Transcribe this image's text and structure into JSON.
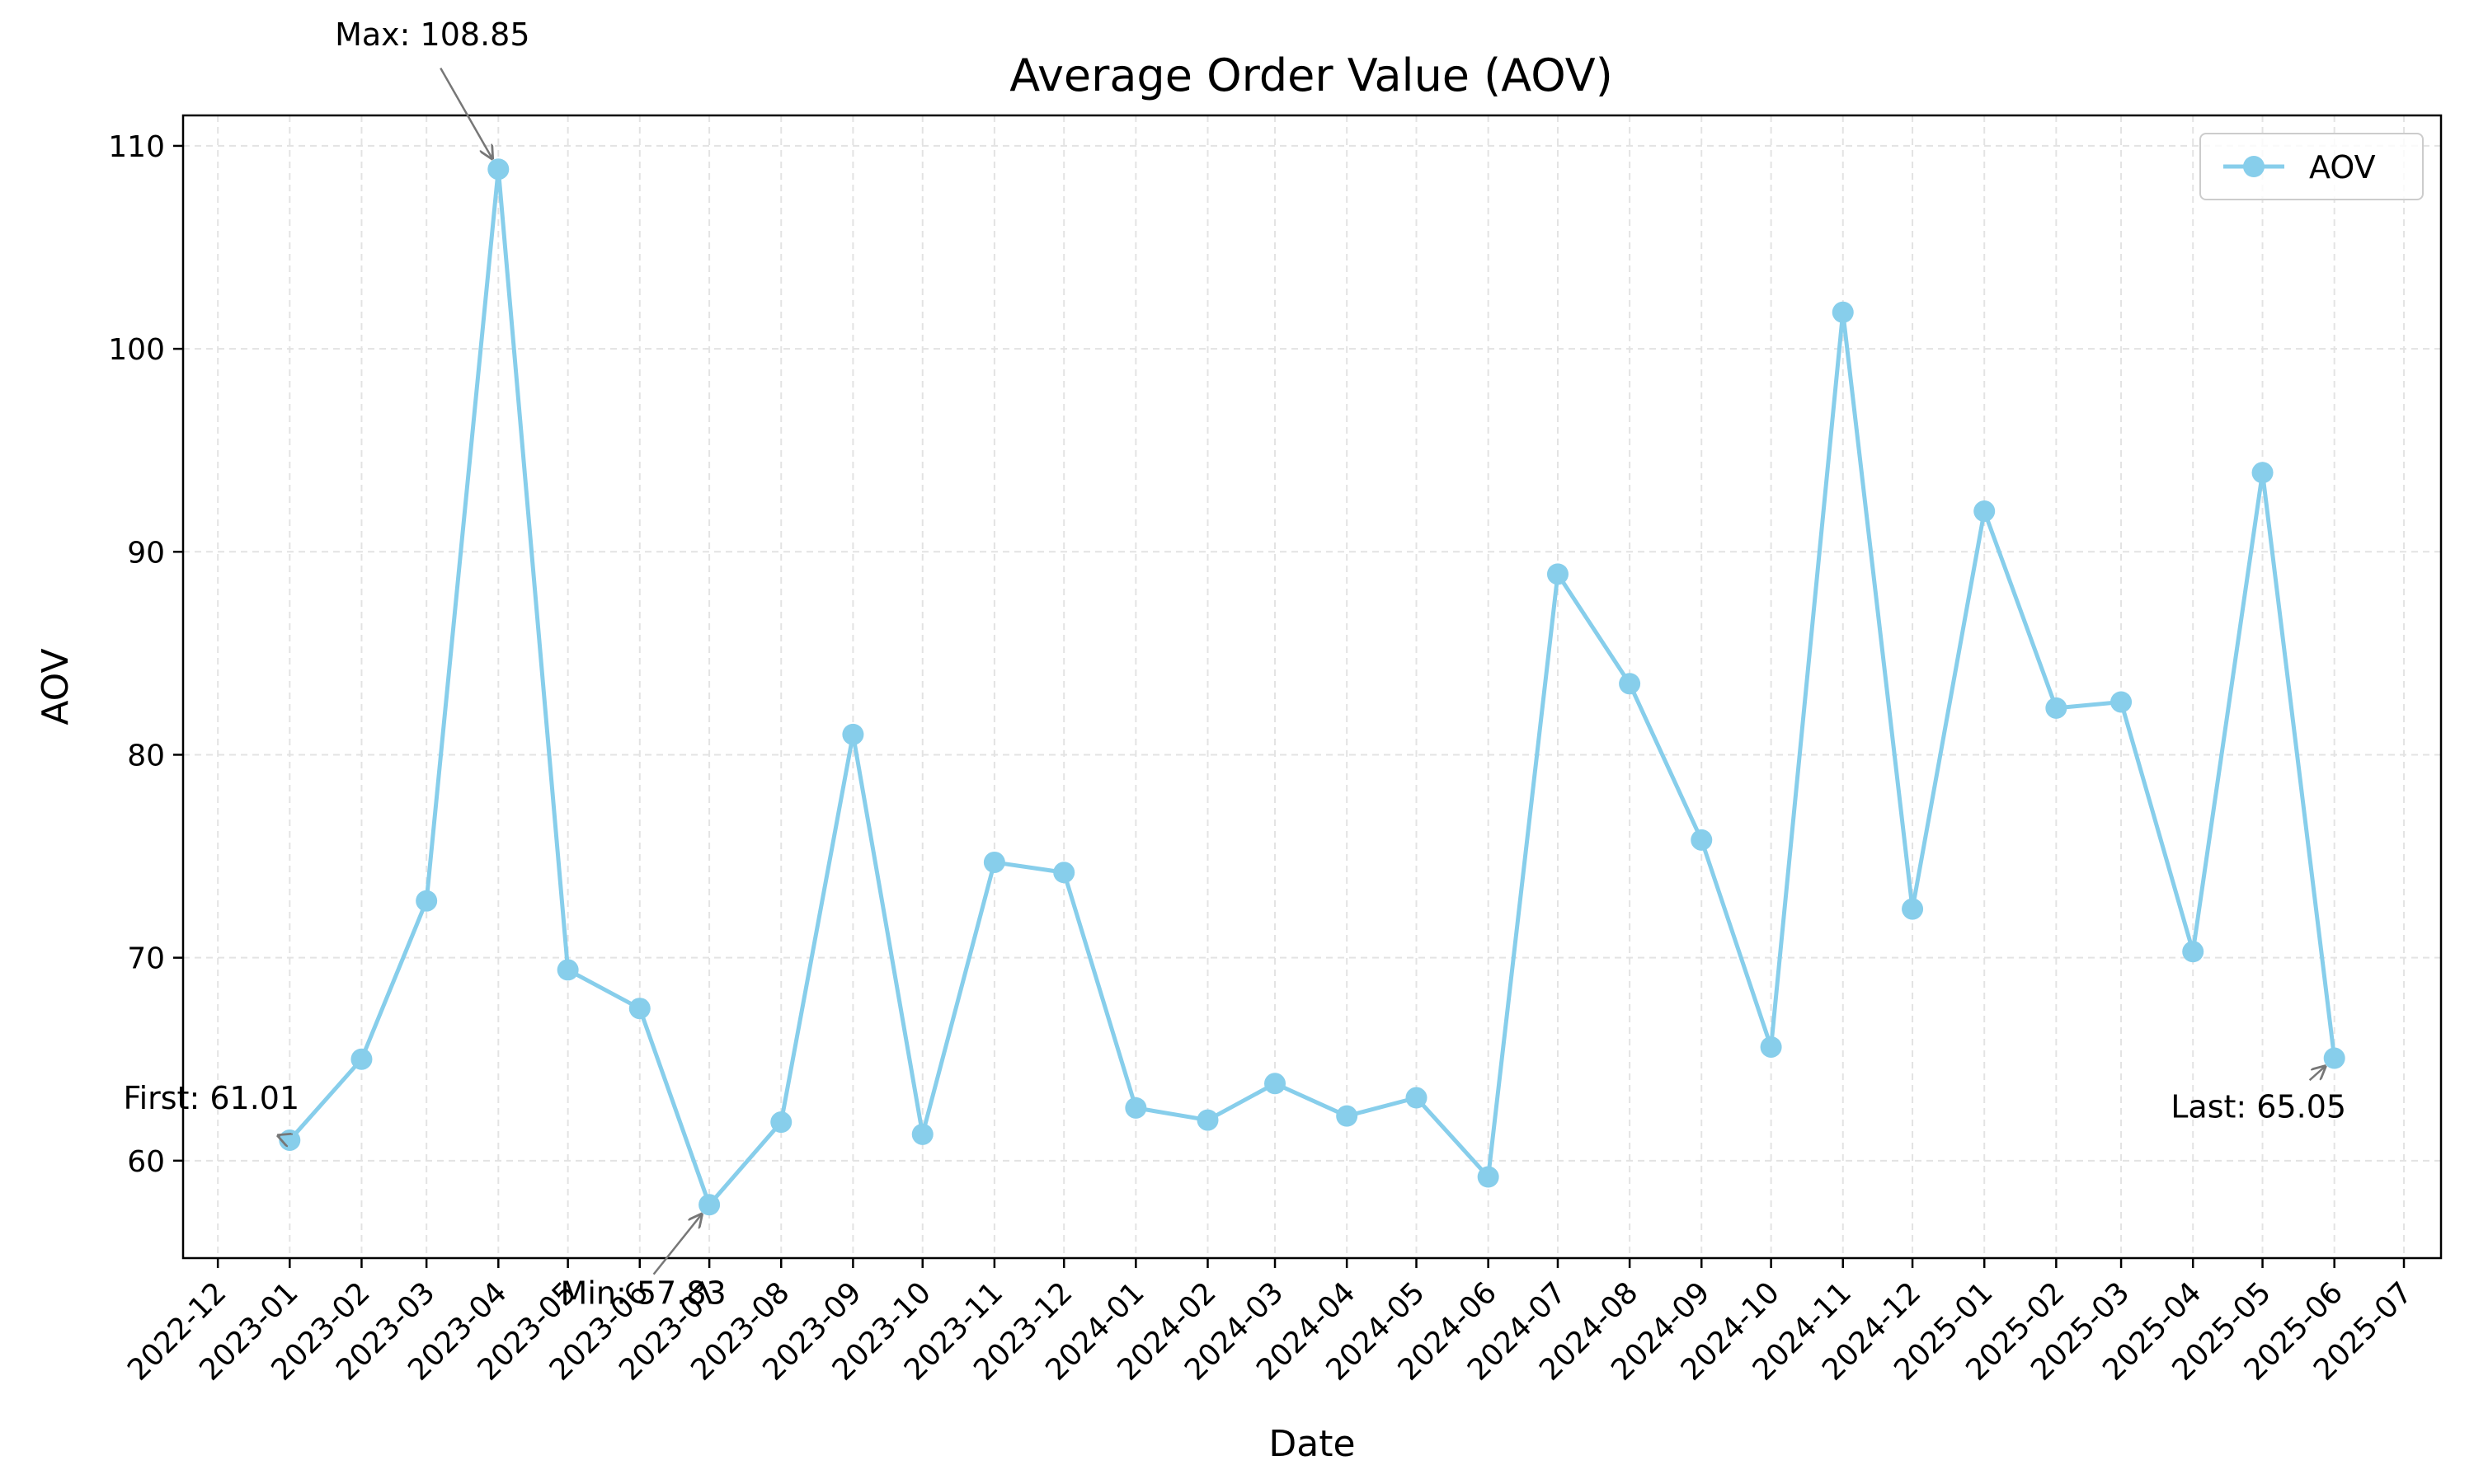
{
  "chart_data": {
    "type": "line",
    "title": "Average Order Value (AOV)",
    "xlabel": "Date",
    "ylabel": "AOV",
    "x": [
      "2023-01",
      "2023-02",
      "2023-03",
      "2023-04",
      "2023-05",
      "2023-06",
      "2023-07",
      "2023-08",
      "2023-09",
      "2023-10",
      "2023-11",
      "2023-12",
      "2024-01",
      "2024-02",
      "2024-03",
      "2024-04",
      "2024-05",
      "2024-06",
      "2024-07",
      "2024-08",
      "2024-09",
      "2024-10",
      "2024-11",
      "2024-12",
      "2025-01",
      "2025-02",
      "2025-03",
      "2025-04",
      "2025-05",
      "2025-06"
    ],
    "series": [
      {
        "name": "AOV",
        "color": "#87CEEB",
        "values": [
          61.01,
          65.0,
          72.8,
          108.85,
          69.4,
          67.5,
          57.83,
          61.9,
          81.0,
          61.3,
          74.7,
          74.2,
          62.6,
          62.0,
          63.8,
          62.2,
          63.1,
          59.2,
          88.9,
          83.5,
          75.8,
          65.6,
          101.8,
          72.4,
          92.0,
          82.3,
          82.6,
          70.3,
          93.9,
          65.05
        ]
      }
    ],
    "x_ticks": [
      "2022-12",
      "2023-01",
      "2023-02",
      "2023-03",
      "2023-04",
      "2023-05",
      "2023-06",
      "2023-07",
      "2023-08",
      "2023-09",
      "2023-10",
      "2023-11",
      "2023-12",
      "2024-01",
      "2024-02",
      "2024-03",
      "2024-04",
      "2024-05",
      "2024-06",
      "2024-07",
      "2024-08",
      "2024-09",
      "2024-10",
      "2024-11",
      "2024-12",
      "2025-01",
      "2025-02",
      "2025-03",
      "2025-04",
      "2025-05",
      "2025-06",
      "2025-07"
    ],
    "y_ticks": [
      60,
      70,
      80,
      90,
      100,
      110
    ],
    "ylim": [
      55.2,
      111.5
    ],
    "xlim": [
      "2022-11-16",
      "2025-07-17"
    ],
    "grid": true,
    "legend": {
      "placement": "top-right",
      "entries": [
        "AOV"
      ]
    },
    "annotations": [
      {
        "label": "Max: 108.85",
        "x": "2023-04",
        "y": 108.85
      },
      {
        "label": "Min: 57.83",
        "x": "2023-07",
        "y": 57.83
      },
      {
        "label": "First: 61.01",
        "x": "2023-01",
        "y": 61.01
      },
      {
        "label": "Last: 65.05",
        "x": "2025-06",
        "y": 65.05
      }
    ]
  }
}
